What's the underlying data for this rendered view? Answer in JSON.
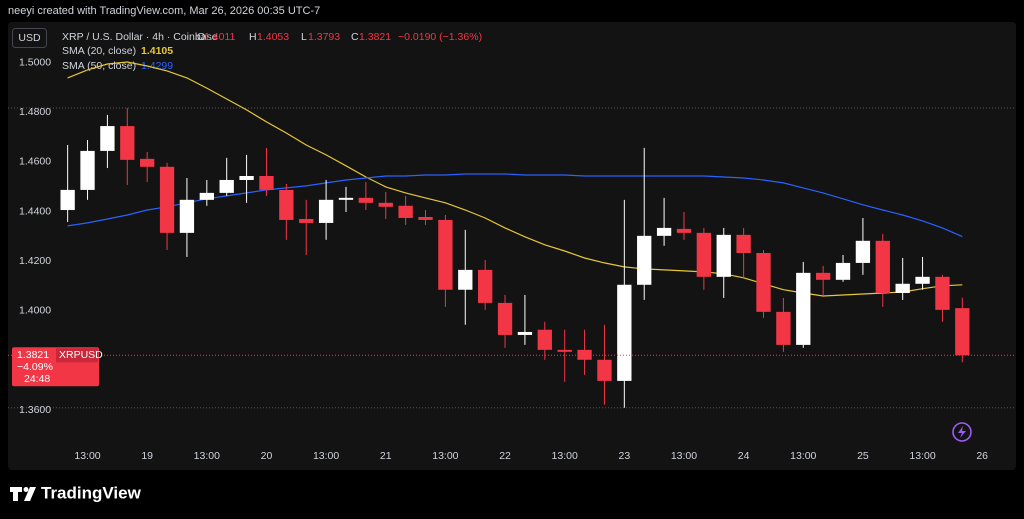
{
  "chart_data": {
    "type": "candlestick",
    "header": "neeyi created with TradingView.com, Mar 26, 2026 00:35 UTC-7",
    "currency": "USD",
    "title": "XRP / U.S. Dollar · 4h · Coinbase",
    "ohlc_letters": [
      "O",
      "H",
      "L",
      "C"
    ],
    "change_label": "−0.0190 (−1.36%)",
    "price_tag": {
      "symbol": "XRPUSD",
      "change": "−4.09%",
      "countdown": "24:48"
    },
    "brand": "TradingView",
    "up_color": "#ffffff",
    "down_color": "#f23645",
    "grid": false,
    "x": [
      0,
      1,
      2,
      3,
      4,
      5,
      6,
      7,
      8,
      9,
      10,
      11,
      12,
      13,
      14,
      15,
      16,
      17,
      18,
      19,
      20,
      21,
      22,
      23,
      24,
      25,
      26,
      27,
      28,
      29,
      30,
      31,
      32,
      33,
      34,
      35,
      36,
      37,
      38,
      39,
      40,
      41,
      42,
      43,
      44,
      45
    ],
    "open": [
      1.4406,
      1.4487,
      1.4644,
      1.4744,
      1.4612,
      1.458,
      1.4314,
      1.4447,
      1.4475,
      1.4527,
      1.4543,
      1.4487,
      1.437,
      1.4354,
      1.4447,
      1.4455,
      1.4435,
      1.4423,
      1.4378,
      1.4366,
      1.4085,
      1.4165,
      1.4032,
      1.3903,
      1.3924,
      1.3843,
      1.3843,
      1.3803,
      1.3718,
      1.4105,
      1.4302,
      1.433,
      1.4314,
      1.4137,
      1.4306,
      1.4233,
      1.3996,
      1.3863,
      1.4153,
      1.4125,
      1.4193,
      1.4282,
      1.4072,
      1.4109,
      1.4137,
      1.4011
    ],
    "high": [
      1.4668,
      1.4688,
      1.4789,
      1.4817,
      1.464,
      1.4596,
      1.4535,
      1.4527,
      1.4616,
      1.4628,
      1.4656,
      1.4511,
      1.4447,
      1.4527,
      1.4499,
      1.4519,
      1.4479,
      1.4463,
      1.4406,
      1.4386,
      1.4326,
      1.4205,
      1.4064,
      1.4064,
      1.3956,
      1.3924,
      1.3924,
      1.3944,
      1.4447,
      1.4656,
      1.4455,
      1.4398,
      1.4334,
      1.4334,
      1.4334,
      1.4245,
      1.4052,
      1.4197,
      1.4181,
      1.4225,
      1.4374,
      1.431,
      1.4213,
      1.4217,
      1.4145,
      1.4053
    ],
    "low": [
      1.4358,
      1.4447,
      1.4575,
      1.4507,
      1.4519,
      1.4245,
      1.4217,
      1.4423,
      1.4463,
      1.4435,
      1.4463,
      1.4286,
      1.4225,
      1.4286,
      1.4398,
      1.4406,
      1.437,
      1.4346,
      1.4346,
      1.4016,
      1.3944,
      1.4004,
      1.3851,
      1.3863,
      1.3803,
      1.3714,
      1.3742,
      1.3622,
      1.361,
      1.4044,
      1.4262,
      1.4286,
      1.4085,
      1.4052,
      1.4133,
      1.3972,
      1.3835,
      1.3851,
      1.406,
      1.4117,
      1.4145,
      1.4016,
      1.4044,
      1.4085,
      1.3956,
      1.3793
    ],
    "close": [
      1.4487,
      1.4644,
      1.4744,
      1.4608,
      1.458,
      1.4314,
      1.4447,
      1.4475,
      1.4527,
      1.4543,
      1.4487,
      1.4366,
      1.4354,
      1.4447,
      1.4455,
      1.4435,
      1.4419,
      1.4374,
      1.4366,
      1.4085,
      1.4165,
      1.4032,
      1.3903,
      1.3915,
      1.3843,
      1.3835,
      1.3803,
      1.3718,
      1.4105,
      1.4302,
      1.4334,
      1.4314,
      1.4137,
      1.4306,
      1.4233,
      1.3996,
      1.3863,
      1.4153,
      1.4125,
      1.4193,
      1.4282,
      1.4072,
      1.4109,
      1.4137,
      1.4004,
      1.3821
    ],
    "series": [
      {
        "name": "SMA (20, close)",
        "color": "#e8c735",
        "values": [
          1.4938,
          1.497,
          1.4994,
          1.5002,
          1.4986,
          1.4966,
          1.4938,
          1.4897,
          1.4853,
          1.4809,
          1.4761,
          1.4716,
          1.4668,
          1.4628,
          1.4584,
          1.4539,
          1.4499,
          1.4475,
          1.4455,
          1.4435,
          1.4406,
          1.4374,
          1.4334,
          1.4298,
          1.4266,
          1.4241,
          1.4213,
          1.4193,
          1.4177,
          1.4169,
          1.4165,
          1.4161,
          1.4157,
          1.4149,
          1.4133,
          1.4109,
          1.4085,
          1.4072,
          1.406,
          1.4064,
          1.4068,
          1.4072,
          1.4076,
          1.4089,
          1.4101,
          1.4105
        ]
      },
      {
        "name": "SMA (50, close)",
        "color": "#2962ff",
        "values": [
          1.4342,
          1.4354,
          1.437,
          1.4386,
          1.4406,
          1.4419,
          1.4435,
          1.4451,
          1.4463,
          1.4475,
          1.4487,
          1.4495,
          1.4503,
          1.4515,
          1.4527,
          1.4535,
          1.4543,
          1.4543,
          1.4547,
          1.4547,
          1.4551,
          1.4551,
          1.4551,
          1.4547,
          1.4547,
          1.4547,
          1.4543,
          1.4543,
          1.4543,
          1.4543,
          1.4543,
          1.4543,
          1.4543,
          1.4539,
          1.4535,
          1.4527,
          1.4515,
          1.4495,
          1.4475,
          1.4451,
          1.4427,
          1.4406,
          1.4386,
          1.4362,
          1.4334,
          1.4299
        ]
      }
    ],
    "xlim": [
      -3,
      47.7
    ],
    "xticks": [
      {
        "value": 1,
        "label": "13:00"
      },
      {
        "value": 4,
        "label": "19"
      },
      {
        "value": 7,
        "label": "13:00"
      },
      {
        "value": 10,
        "label": "20"
      },
      {
        "value": 13,
        "label": "13:00"
      },
      {
        "value": 16,
        "label": "21"
      },
      {
        "value": 19,
        "label": "13:00"
      },
      {
        "value": 22,
        "label": "22"
      },
      {
        "value": 25,
        "label": "13:00"
      },
      {
        "value": 28,
        "label": "23"
      },
      {
        "value": 31,
        "label": "13:00"
      },
      {
        "value": 34,
        "label": "24"
      },
      {
        "value": 37,
        "label": "13:00"
      },
      {
        "value": 40,
        "label": "25"
      },
      {
        "value": 43,
        "label": "13:00"
      },
      {
        "value": 46,
        "label": "26"
      }
    ],
    "ylim": [
      1.348,
      1.5155
    ],
    "yticks": [
      {
        "value": 1.36,
        "label": "1.3600"
      },
      {
        "value": 1.4,
        "label": "1.4000"
      },
      {
        "value": 1.42,
        "label": "1.4200"
      },
      {
        "value": 1.44,
        "label": "1.4400"
      },
      {
        "value": 1.46,
        "label": "1.4600"
      },
      {
        "value": 1.48,
        "label": "1.4800"
      },
      {
        "value": 1.5,
        "label": "1.5000"
      }
    ]
  }
}
